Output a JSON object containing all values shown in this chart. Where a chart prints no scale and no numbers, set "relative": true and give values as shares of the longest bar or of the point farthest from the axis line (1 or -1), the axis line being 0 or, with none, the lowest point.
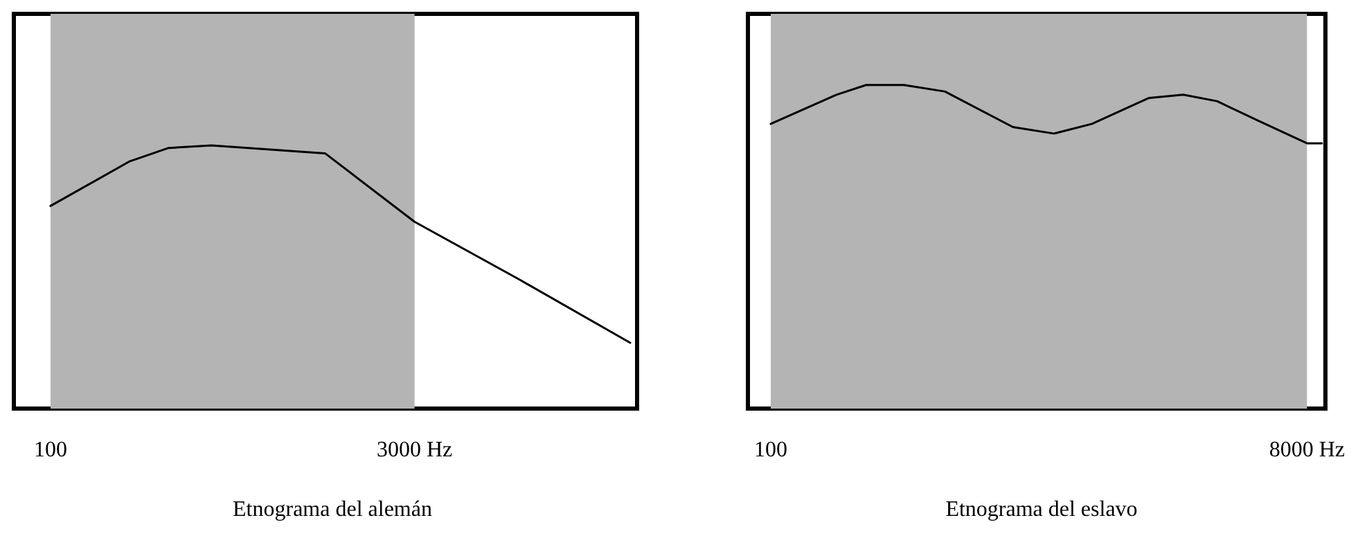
{
  "chart_data": [
    {
      "type": "line",
      "title": "Etnograma del alemán",
      "relative": true,
      "log": "x",
      "xlim": [
        71,
        24000
      ],
      "xticks": [
        {
          "value": 100,
          "label": "100"
        },
        {
          "value": 3000,
          "label": "3000 Hz"
        }
      ],
      "series": [
        {
          "color": "#000000",
          "x": [
            100,
            210,
            300,
            450,
            1300,
            3000,
            8000,
            22500
          ],
          "values": [
            0.77,
            0.94,
            0.99,
            1,
            0.97,
            0.71,
            0.49,
            0.25
          ]
        }
      ],
      "bands": [
        {
          "axis": "x",
          "from": 100,
          "to": 3000,
          "color": "#b4b4b4"
        }
      ],
      "grid": false,
      "marker": "none",
      "line_style": "solid"
    },
    {
      "type": "line",
      "title": "Etnograma del eslavo",
      "relative": true,
      "log": "x",
      "xlim": [
        83,
        9300
      ],
      "xticks": [
        {
          "value": 100,
          "label": "100"
        },
        {
          "value": 8000,
          "label": "8000 Hz"
        }
      ],
      "series": [
        {
          "color": "#000000",
          "x": [
            100,
            171,
            218,
            297,
            415,
            724,
            1012,
            1380,
            2200,
            2910,
            3840,
            5360,
            8000,
            9040
          ],
          "values": [
            0.88,
            0.97,
            1,
            1,
            0.98,
            0.87,
            0.85,
            0.88,
            0.96,
            0.97,
            0.95,
            0.89,
            0.82,
            0.82
          ]
        }
      ],
      "bands": [
        {
          "axis": "x",
          "from": 100,
          "to": 8000,
          "color": "#b4b4b4"
        }
      ],
      "grid": false,
      "marker": "none",
      "line_style": "solid"
    }
  ]
}
